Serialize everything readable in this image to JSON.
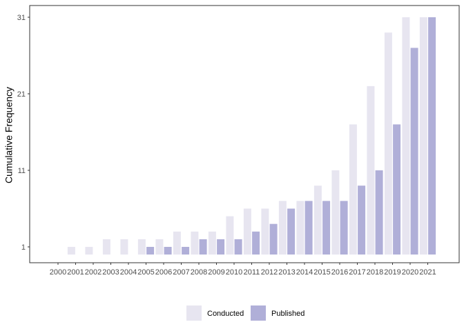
{
  "chart_data": {
    "type": "bar",
    "title": "",
    "xlabel": "",
    "ylabel": "Cumulative Frequency",
    "categories": [
      "2000",
      "2001",
      "2002",
      "2003",
      "2004",
      "2005",
      "2006",
      "2007",
      "2008",
      "2009",
      "2010",
      "2011",
      "2012",
      "2013",
      "2014",
      "2015",
      "2016",
      "2017",
      "2018",
      "2019",
      "2020",
      "2021"
    ],
    "series": [
      {
        "name": "Conducted",
        "color": "#e7e5f0",
        "values": [
          0,
          1,
          1,
          2,
          2,
          2,
          2,
          3,
          3,
          3,
          5,
          6,
          6,
          7,
          7,
          9,
          11,
          17,
          22,
          29,
          31,
          31
        ]
      },
      {
        "name": "Published",
        "color": "#b0afd8",
        "values": [
          0,
          0,
          0,
          0,
          0,
          1,
          1,
          1,
          2,
          2,
          2,
          3,
          4,
          6,
          7,
          7,
          7,
          9,
          11,
          17,
          27,
          31
        ]
      }
    ],
    "ylim": [
      0,
      31
    ],
    "yticks": [
      "1",
      "11",
      "21",
      "31"
    ],
    "grid": false,
    "legend_position": "bottom"
  }
}
